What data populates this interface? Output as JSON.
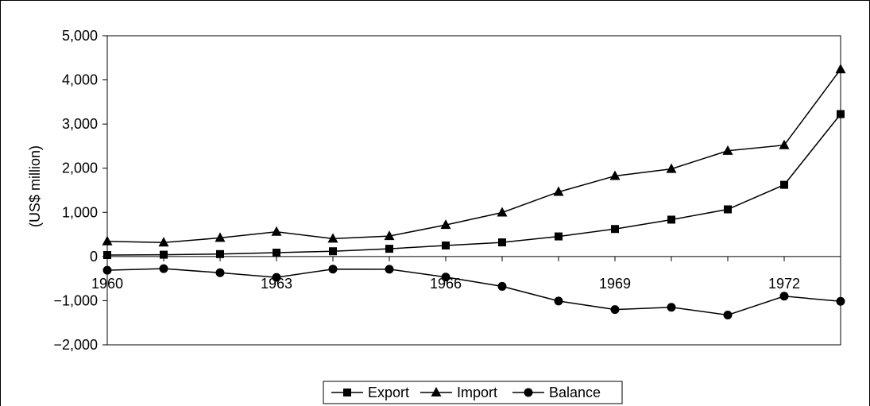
{
  "chart_data": {
    "type": "line",
    "title": "",
    "xlabel": "",
    "ylabel": "(US$ million)",
    "x": [
      1960,
      1961,
      1962,
      1963,
      1964,
      1965,
      1966,
      1967,
      1968,
      1969,
      1970,
      1971,
      1972,
      1973
    ],
    "xlim": [
      1960,
      1973
    ],
    "x_tick_labels": [
      "1960",
      "1963",
      "1966",
      "1969",
      "1972"
    ],
    "ylim": [
      -2000,
      5000
    ],
    "y_tick_labels": [
      "5,000",
      "4,000",
      "3,000",
      "2,000",
      "1,000",
      "0",
      "−1,000",
      "−2,000"
    ],
    "grid": false,
    "legend_position": "bottom",
    "series": [
      {
        "name": "Export",
        "marker": "square",
        "values": [
          33,
          41,
          55,
          87,
          119,
          175,
          250,
          320,
          455,
          623,
          835,
          1068,
          1624,
          3225
        ]
      },
      {
        "name": "Import",
        "marker": "triangle",
        "values": [
          344,
          316,
          422,
          560,
          404,
          463,
          716,
          996,
          1463,
          1824,
          1984,
          2394,
          2522,
          4240
        ]
      },
      {
        "name": "Balance",
        "marker": "circle",
        "values": [
          -311,
          -275,
          -367,
          -473,
          -285,
          -288,
          -466,
          -676,
          -1008,
          -1201,
          -1149,
          -1326,
          -898,
          -1015
        ]
      }
    ]
  }
}
